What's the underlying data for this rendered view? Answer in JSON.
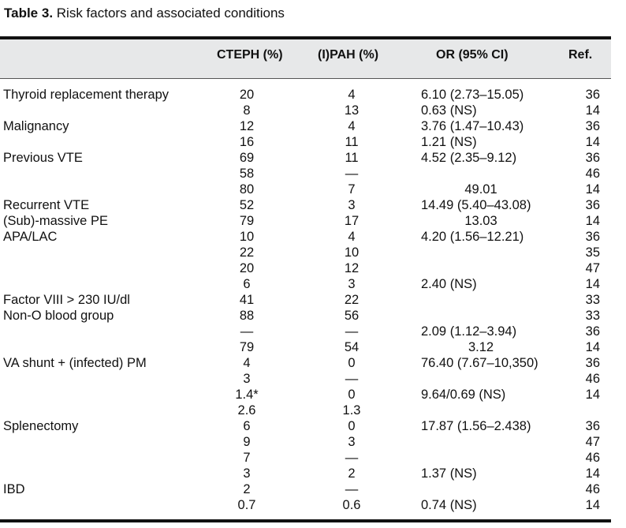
{
  "caption": {
    "label": "Table 3.",
    "text": "Risk factors and associated conditions"
  },
  "header": {
    "cteph": "CTEPH (%)",
    "ipah": "(I)PAH (%)",
    "or": "OR (95% CI)",
    "ref": "Ref."
  },
  "rows": [
    {
      "condition": "Thyroid replacement therapy",
      "cteph": "20",
      "ipah": "4",
      "or": "6.10 (2.73–15.05)",
      "or_centered": false,
      "ref": "36"
    },
    {
      "condition": "",
      "cteph": "8",
      "ipah": "13",
      "or": "0.63 (NS)",
      "or_centered": false,
      "ref": "14"
    },
    {
      "condition": "Malignancy",
      "cteph": "12",
      "ipah": "4",
      "or": "3.76 (1.47–10.43)",
      "or_centered": false,
      "ref": "36"
    },
    {
      "condition": "",
      "cteph": "16",
      "ipah": "11",
      "or": "1.21 (NS)",
      "or_centered": false,
      "ref": "14"
    },
    {
      "condition": "Previous VTE",
      "cteph": "69",
      "ipah": "11",
      "or": "4.52 (2.35–9.12)",
      "or_centered": false,
      "ref": "36"
    },
    {
      "condition": "",
      "cteph": "58",
      "ipah": "—",
      "or": "",
      "or_centered": false,
      "ref": "46"
    },
    {
      "condition": "",
      "cteph": "80",
      "ipah": "7",
      "or": "49.01",
      "or_centered": true,
      "ref": "14"
    },
    {
      "condition": "Recurrent VTE",
      "cteph": "52",
      "ipah": "3",
      "or": "14.49 (5.40–43.08)",
      "or_centered": false,
      "ref": "36"
    },
    {
      "condition": "(Sub)-massive PE",
      "cteph": "79",
      "ipah": "17",
      "or": "13.03",
      "or_centered": true,
      "ref": "14"
    },
    {
      "condition": "APA/LAC",
      "cteph": "10",
      "ipah": "4",
      "or": "4.20 (1.56–12.21)",
      "or_centered": false,
      "ref": "36"
    },
    {
      "condition": "",
      "cteph": "22",
      "ipah": "10",
      "or": "",
      "or_centered": false,
      "ref": "35"
    },
    {
      "condition": "",
      "cteph": "20",
      "ipah": "12",
      "or": "",
      "or_centered": false,
      "ref": "47"
    },
    {
      "condition": "",
      "cteph": "6",
      "ipah": "3",
      "or": "2.40 (NS)",
      "or_centered": false,
      "ref": "14"
    },
    {
      "condition": "Factor VIII > 230 IU/dl",
      "cteph": "41",
      "ipah": "22",
      "or": "",
      "or_centered": false,
      "ref": "33"
    },
    {
      "condition": "Non-O blood group",
      "cteph": "88",
      "ipah": "56",
      "or": "",
      "or_centered": false,
      "ref": "33"
    },
    {
      "condition": "",
      "cteph": "—",
      "ipah": "—",
      "or": "2.09 (1.12–3.94)",
      "or_centered": false,
      "ref": "36"
    },
    {
      "condition": "",
      "cteph": "79",
      "ipah": "54",
      "or": "3.12",
      "or_centered": true,
      "ref": "14"
    },
    {
      "condition": "VA shunt + (infected) PM",
      "cteph": "4",
      "ipah": "0",
      "or": "76.40 (7.67–10,350)",
      "or_centered": false,
      "ref": "36"
    },
    {
      "condition": "",
      "cteph": "3",
      "ipah": "—",
      "or": "",
      "or_centered": false,
      "ref": "46"
    },
    {
      "condition": "",
      "cteph": "1.4*",
      "ipah": "0",
      "or": "9.64/0.69 (NS)",
      "or_centered": false,
      "ref": "14"
    },
    {
      "condition": "",
      "cteph": "2.6",
      "ipah": "1.3",
      "or": "",
      "or_centered": false,
      "ref": ""
    },
    {
      "condition": "Splenectomy",
      "cteph": "6",
      "ipah": "0",
      "or": "17.87 (1.56–2.438)",
      "or_centered": false,
      "ref": "36"
    },
    {
      "condition": "",
      "cteph": "9",
      "ipah": "3",
      "or": "",
      "or_centered": false,
      "ref": "47"
    },
    {
      "condition": "",
      "cteph": "7",
      "ipah": "—",
      "or": "",
      "or_centered": false,
      "ref": "46"
    },
    {
      "condition": "",
      "cteph": "3",
      "ipah": "2",
      "or": "1.37 (NS)",
      "or_centered": false,
      "ref": "14"
    },
    {
      "condition": "IBD",
      "cteph": "2",
      "ipah": "—",
      "or": "",
      "or_centered": false,
      "ref": "46"
    },
    {
      "condition": "",
      "cteph": "0.7",
      "ipah": "0.6",
      "or": "0.74 (NS)",
      "or_centered": false,
      "ref": "14"
    }
  ]
}
